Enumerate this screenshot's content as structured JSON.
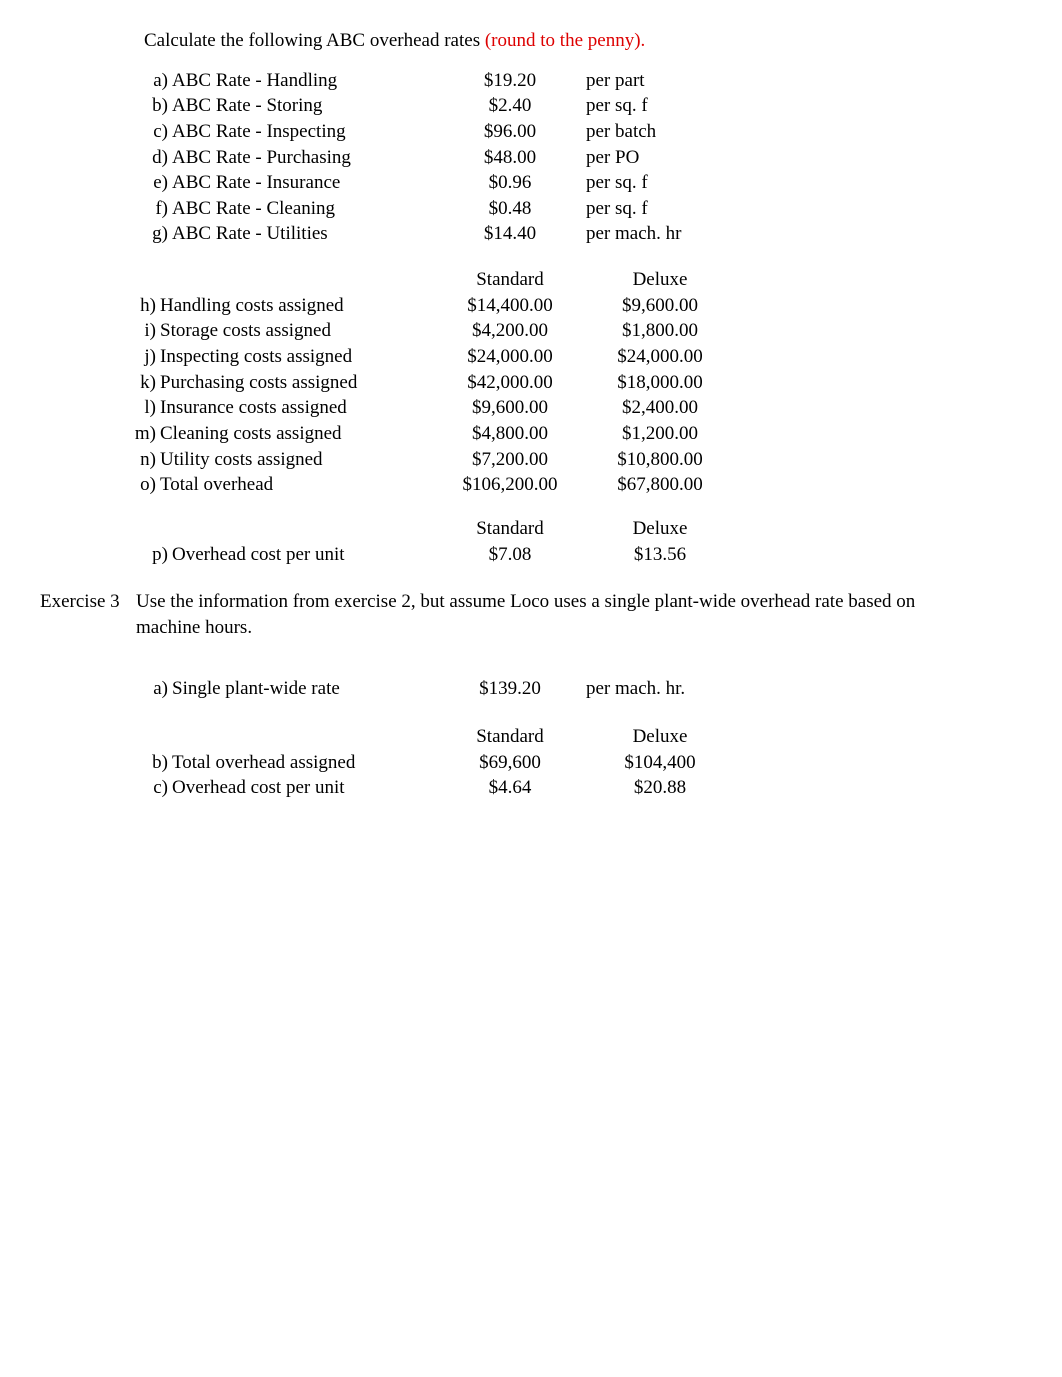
{
  "instruction": {
    "plain": "Calculate the following ABC overhead rates",
    "note": " (round to the penny)."
  },
  "ratesA": [
    {
      "idx": "a)",
      "label": "ABC Rate - Handling",
      "value": "$19.20",
      "unit": "per part"
    },
    {
      "idx": "b)",
      "label": "ABC Rate - Storing",
      "value": "$2.40",
      "unit": "per sq. f"
    },
    {
      "idx": "c)",
      "label": "ABC Rate - Inspecting",
      "value": "$96.00",
      "unit": "per batch"
    },
    {
      "idx": "d)",
      "label": "ABC Rate - Purchasing",
      "value": "$48.00",
      "unit": "per PO"
    },
    {
      "idx": "e)",
      "label": "ABC Rate - Insurance",
      "value": "$0.96",
      "unit": "per sq. f"
    },
    {
      "idx": "f)",
      "label": "ABC Rate - Cleaning",
      "value": "$0.48",
      "unit": "per sq. f"
    },
    {
      "idx": "g)",
      "label": "ABC Rate - Utilities",
      "value": "$14.40",
      "unit": "per mach. hr"
    }
  ],
  "assignedHeader": {
    "c1": "Standard",
    "c2": "Deluxe"
  },
  "assigned": [
    {
      "idx": "h)",
      "label": "Handling costs assigned",
      "c1": "$14,400.00",
      "c2": "$9,600.00"
    },
    {
      "idx": "i)",
      "label": "Storage costs assigned",
      "c1": "$4,200.00",
      "c2": "$1,800.00"
    },
    {
      "idx": "j)",
      "label": "Inspecting costs assigned",
      "c1": "$24,000.00",
      "c2": "$24,000.00"
    },
    {
      "idx": "k)",
      "label": "Purchasing costs assigned",
      "c1": "$42,000.00",
      "c2": "$18,000.00"
    },
    {
      "idx": "l)",
      "label": "Insurance costs assigned",
      "c1": "$9,600.00",
      "c2": "$2,400.00"
    },
    {
      "idx": "m)",
      "label": "Cleaning costs assigned",
      "c1": "$4,800.00",
      "c2": "$1,200.00"
    },
    {
      "idx": "n)",
      "label": "Utility costs assigned",
      "c1": "$7,200.00",
      "c2": "$10,800.00"
    },
    {
      "idx": "o)",
      "label": "Total overhead",
      "c1": "$106,200.00",
      "c2": "$67,800.00"
    }
  ],
  "perUnitHeader": {
    "c1": "Standard",
    "c2": "Deluxe"
  },
  "perUnit": {
    "idx": "p)",
    "label": "Overhead cost per unit",
    "c1": "$7.08",
    "c2": "$13.56"
  },
  "ex3": {
    "label": "Exercise 3",
    "text": "Use the information from exercise 2, but assume Loco uses a single plant-wide overhead rate based on machine hours."
  },
  "ex3a": {
    "idx": "a)",
    "label": "Single plant-wide rate",
    "value": "$139.20",
    "unit": "per mach. hr."
  },
  "ex3Header": {
    "c1": "Standard",
    "c2": "Deluxe"
  },
  "ex3rows": [
    {
      "idx": "b)",
      "label": "Total overhead assigned",
      "c1": "$69,600",
      "c2": "$104,400"
    },
    {
      "idx": "c)",
      "label": "Overhead cost per unit",
      "c1": "$4.64",
      "c2": "$20.88"
    }
  ]
}
